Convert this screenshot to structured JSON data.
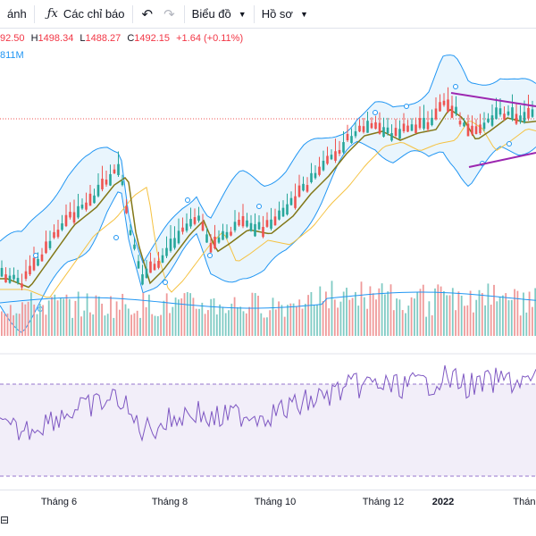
{
  "toolbar": {
    "interval_fragment": "ánh",
    "indicators_label": "Các chỉ báo",
    "chart_menu_label": "Biểu đồ",
    "profile_menu_label": "Hồ sơ"
  },
  "legend": {
    "open_fragment": "92.50",
    "high_label": "H",
    "high": "1498.34",
    "low_label": "L",
    "low": "1488.27",
    "close_label": "C",
    "close": "1492.15",
    "change": "+1.64 (+0.11%)",
    "volume_fragment": "811M"
  },
  "time_axis": {
    "labels": [
      "Tháng 6",
      "Tháng 8",
      "Tháng 10",
      "Tháng 12",
      "2022",
      "Tháng"
    ]
  },
  "colors": {
    "up": "#26a69a",
    "down": "#ef5350",
    "bollinger": "#2196f3",
    "ma_fast": "#827717",
    "ma_slow": "#f5c242",
    "rsi": "#7e57c2",
    "triangle": "#9c27b0"
  },
  "icons": {
    "indicators": "fx-icon",
    "undo": "undo-icon",
    "redo": "redo-icon",
    "chevron": "chevron-down-icon"
  }
}
